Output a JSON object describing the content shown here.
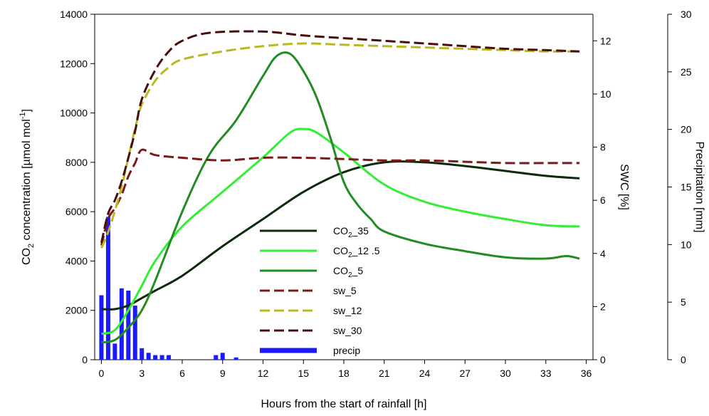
{
  "chart_data": {
    "type": "line",
    "xlabel": "Hours from the start of rainfall [h]",
    "ylabel_left": {
      "pre": "CO",
      "sub": "2",
      "mid": " concentration [µmol mol",
      "sup": "-1",
      "post": "]"
    },
    "ylabel_mid": "SWC [%]",
    "ylabel_right": "Precipitation [mm]",
    "xlim": [
      -0.5,
      36.5
    ],
    "ylim_left": [
      0,
      14000
    ],
    "ylim_mid": [
      0,
      13
    ],
    "ylim_right": [
      0,
      30
    ],
    "x_ticks": [
      "0",
      "3",
      "6",
      "9",
      "12",
      "15",
      "18",
      "21",
      "24",
      "27",
      "30",
      "33",
      "36"
    ],
    "y_left_ticks": [
      "0",
      "2000",
      "4000",
      "6000",
      "8000",
      "10000",
      "12000",
      "14000"
    ],
    "y_mid_ticks": [
      "0",
      "2",
      "4",
      "6",
      "8",
      "10",
      "12"
    ],
    "y_right_ticks": [
      "0",
      "5",
      "10",
      "15",
      "20",
      "25",
      "30"
    ],
    "series": [
      {
        "name": "CO2_35",
        "legend": {
          "pre": "CO",
          "sub": "2",
          "post": "_35"
        },
        "axis": "left",
        "color": "#0d2a0d",
        "dash": "solid",
        "x": [
          0,
          1,
          2,
          3,
          4,
          6,
          9,
          12,
          15,
          18,
          21,
          24,
          27,
          30,
          33,
          35.5
        ],
        "y": [
          2050,
          2050,
          2200,
          2500,
          2800,
          3400,
          4600,
          5700,
          6800,
          7600,
          8000,
          8000,
          7850,
          7650,
          7450,
          7350
        ]
      },
      {
        "name": "CO2_12 .5",
        "legend": {
          "pre": "CO",
          "sub": "2",
          "post": "_12 .5"
        },
        "axis": "left",
        "color": "#33ee33",
        "dash": "solid",
        "x": [
          0,
          1,
          2,
          3,
          4,
          6,
          9,
          12,
          14,
          15,
          16,
          18,
          21,
          24,
          27,
          30,
          33,
          35.5
        ],
        "y": [
          1050,
          1200,
          2000,
          3000,
          4000,
          5400,
          6800,
          8200,
          9200,
          9350,
          9200,
          8400,
          7100,
          6400,
          6000,
          5700,
          5450,
          5400
        ]
      },
      {
        "name": "CO2_5",
        "legend": {
          "pre": "CO",
          "sub": "2",
          "post": "_5"
        },
        "axis": "left",
        "color": "#238b23",
        "dash": "solid",
        "x": [
          0,
          1,
          2,
          3,
          4,
          6,
          8,
          10,
          12,
          13,
          14,
          15,
          16,
          17,
          18,
          19,
          20,
          21,
          24,
          27,
          30,
          33,
          34.5,
          35.5
        ],
        "y": [
          700,
          800,
          1300,
          2000,
          3200,
          6000,
          8300,
          9700,
          11500,
          12300,
          12400,
          11700,
          10600,
          9000,
          7200,
          6300,
          5700,
          5200,
          4700,
          4400,
          4150,
          4100,
          4200,
          4100
        ]
      },
      {
        "name": "sw_5",
        "axis": "mid",
        "color": "#7a1a1a",
        "dash": "dashed",
        "x": [
          0,
          0.5,
          1,
          1.5,
          2,
          2.5,
          3,
          4,
          6,
          9,
          12,
          15,
          18,
          21,
          24,
          27,
          30,
          33,
          35.5
        ],
        "y": [
          4.3,
          5.3,
          5.7,
          6.2,
          6.9,
          7.4,
          7.9,
          7.7,
          7.6,
          7.5,
          7.6,
          7.6,
          7.55,
          7.5,
          7.5,
          7.45,
          7.4,
          7.4,
          7.4
        ]
      },
      {
        "name": "sw_12",
        "axis": "mid",
        "color": "#b8b820",
        "dash": "dashed",
        "x": [
          0,
          0.5,
          1,
          1.5,
          2,
          2.5,
          3,
          4,
          5,
          6,
          9,
          12,
          15,
          18,
          21,
          24,
          27,
          30,
          33,
          35.5
        ],
        "y": [
          4.2,
          4.8,
          5.6,
          6.5,
          7.6,
          8.7,
          9.6,
          10.5,
          11.0,
          11.3,
          11.6,
          11.8,
          11.9,
          11.85,
          11.8,
          11.75,
          11.7,
          11.65,
          11.6,
          11.6
        ]
      },
      {
        "name": "sw_30",
        "axis": "mid",
        "color": "#4a0c0c",
        "dash": "dashed",
        "x": [
          0,
          0.5,
          1,
          1.5,
          2,
          2.5,
          3,
          4,
          5,
          6,
          8,
          12,
          15,
          18,
          21,
          24,
          27,
          30,
          33,
          35.5
        ],
        "y": [
          4.4,
          5.5,
          6.0,
          6.7,
          7.6,
          8.6,
          9.8,
          10.9,
          11.6,
          12.0,
          12.3,
          12.35,
          12.2,
          12.1,
          12.0,
          11.9,
          11.8,
          11.7,
          11.65,
          11.6
        ]
      }
    ],
    "precip": {
      "name": "precip",
      "axis": "right",
      "color": "#1a1aff",
      "x": [
        0,
        0.5,
        1,
        1.5,
        2,
        2.5,
        3,
        3.5,
        4,
        4.5,
        5,
        8.5,
        9,
        10
      ],
      "y": [
        5.6,
        12.4,
        1.4,
        6.2,
        6.0,
        4.7,
        1.0,
        0.6,
        0.4,
        0.4,
        0.4,
        0.4,
        0.6,
        0.2
      ]
    },
    "legend_position": "center",
    "grid": false
  }
}
